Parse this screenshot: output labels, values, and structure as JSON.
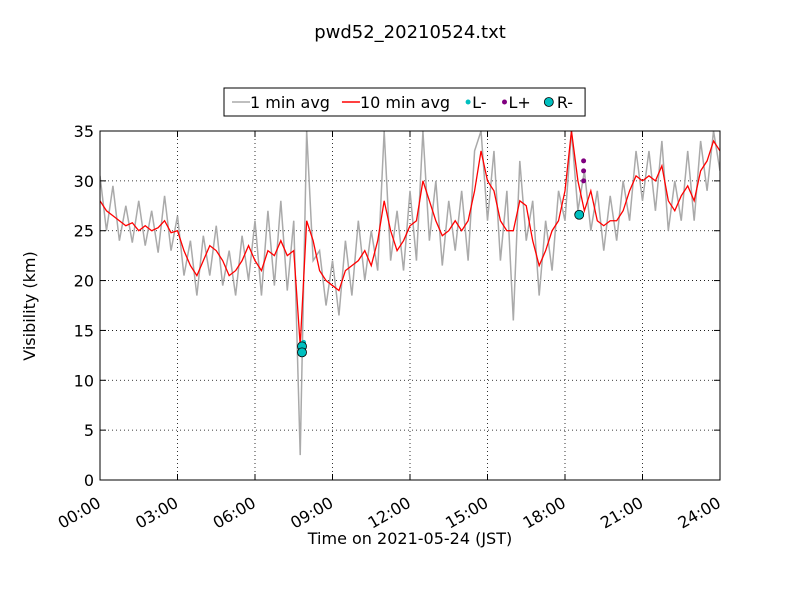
{
  "chart_data": {
    "type": "line",
    "title": "pwd52_20210524.txt",
    "x_label": "Time on 2021-05-24 (JST)",
    "y_label": "Visibility (km)",
    "xlim": [
      0,
      24
    ],
    "ylim": [
      0,
      35
    ],
    "xticks": [
      {
        "value": 0,
        "label": "00:00"
      },
      {
        "value": 3,
        "label": "03:00"
      },
      {
        "value": 6,
        "label": "06:00"
      },
      {
        "value": 9,
        "label": "09:00"
      },
      {
        "value": 12,
        "label": "12:00"
      },
      {
        "value": 15,
        "label": "15:00"
      },
      {
        "value": 18,
        "label": "18:00"
      },
      {
        "value": 21,
        "label": "21:00"
      },
      {
        "value": 24,
        "label": "24:00"
      }
    ],
    "yticks": [
      0,
      5,
      10,
      15,
      20,
      25,
      30,
      35
    ],
    "grid": true,
    "legend": "top",
    "x": [
      0,
      0.25,
      0.5,
      0.75,
      1,
      1.25,
      1.5,
      1.75,
      2,
      2.25,
      2.5,
      2.75,
      3,
      3.25,
      3.5,
      3.75,
      4,
      4.25,
      4.5,
      4.75,
      5,
      5.25,
      5.5,
      5.75,
      6,
      6.25,
      6.5,
      6.75,
      7,
      7.25,
      7.5,
      7.75,
      8,
      8.25,
      8.5,
      8.75,
      9,
      9.25,
      9.5,
      9.75,
      10,
      10.25,
      10.5,
      10.75,
      11,
      11.25,
      11.5,
      11.75,
      12,
      12.25,
      12.5,
      12.75,
      13,
      13.25,
      13.5,
      13.75,
      14,
      14.25,
      14.5,
      14.75,
      15,
      15.25,
      15.5,
      15.75,
      16,
      16.25,
      16.5,
      16.75,
      17,
      17.25,
      17.5,
      17.75,
      18,
      18.25,
      18.5,
      18.75,
      19,
      19.25,
      19.5,
      19.75,
      20,
      20.25,
      20.5,
      20.75,
      21,
      21.25,
      21.5,
      21.75,
      22,
      22.25,
      22.5,
      22.75,
      23,
      23.25,
      23.5,
      23.75,
      24
    ],
    "series": [
      {
        "name": "1 min avg",
        "style": "line",
        "color": "#aaaaaa",
        "values": [
          30.5,
          25,
          29.5,
          24,
          27.5,
          23.8,
          28,
          23.5,
          27,
          22.8,
          28.5,
          23,
          26.5,
          20.5,
          24,
          18.5,
          24.5,
          20.5,
          25.5,
          19.5,
          23,
          18.5,
          24.5,
          20,
          26,
          18.5,
          27,
          19.5,
          28,
          19,
          26,
          2.5,
          35,
          22,
          23,
          17.5,
          22,
          16.5,
          24,
          18.5,
          26,
          20,
          25,
          21,
          35,
          22,
          27,
          21,
          29,
          22,
          35,
          24,
          30,
          21.5,
          28,
          23,
          29,
          22,
          33,
          35,
          26,
          33,
          22,
          29,
          16,
          32,
          24,
          28,
          18.5,
          26,
          21,
          29,
          26,
          35,
          27,
          31,
          25,
          29,
          23,
          28.5,
          24,
          30,
          26,
          33,
          28,
          33,
          27,
          34,
          25,
          30,
          26,
          33,
          26,
          34,
          29,
          35,
          31
        ]
      },
      {
        "name": "10 min avg",
        "style": "line",
        "color": "#ff0000",
        "values": [
          28,
          27,
          26.5,
          26,
          25.5,
          25.8,
          25,
          25.5,
          25,
          25.3,
          26,
          24.8,
          25,
          23,
          21.5,
          20.5,
          22,
          23.5,
          23,
          22,
          20.5,
          21,
          22,
          23.5,
          22,
          21,
          23,
          22.5,
          24,
          22.5,
          23,
          13.5,
          26,
          24,
          21,
          20,
          19.5,
          19,
          21,
          21.5,
          22,
          23,
          21.5,
          24,
          28,
          25,
          23,
          24,
          25.5,
          26,
          30,
          28,
          26,
          24.5,
          25,
          26,
          25,
          26,
          29,
          33,
          30,
          29,
          26,
          25,
          25,
          28,
          27.5,
          24,
          21.5,
          23,
          25,
          26,
          29,
          35,
          30,
          27,
          29,
          26,
          25.5,
          26,
          26,
          27,
          29,
          30.5,
          30,
          30.5,
          30,
          31.5,
          28,
          27,
          28.5,
          29.5,
          28,
          31,
          32,
          34,
          33
        ]
      },
      {
        "name": "L-",
        "style": "dot",
        "color": "#00bfbf",
        "x": [
          7.88
        ],
        "values": [
          13.8
        ]
      },
      {
        "name": "L+",
        "style": "dot",
        "color": "#800080",
        "x": [
          18.72,
          18.72,
          18.72
        ],
        "values": [
          32,
          31,
          30
        ]
      },
      {
        "name": "R-",
        "style": "circle",
        "color": "#00bfbf",
        "x": [
          7.82,
          7.82,
          18.55
        ],
        "values": [
          13.4,
          12.8,
          26.6
        ]
      }
    ]
  }
}
